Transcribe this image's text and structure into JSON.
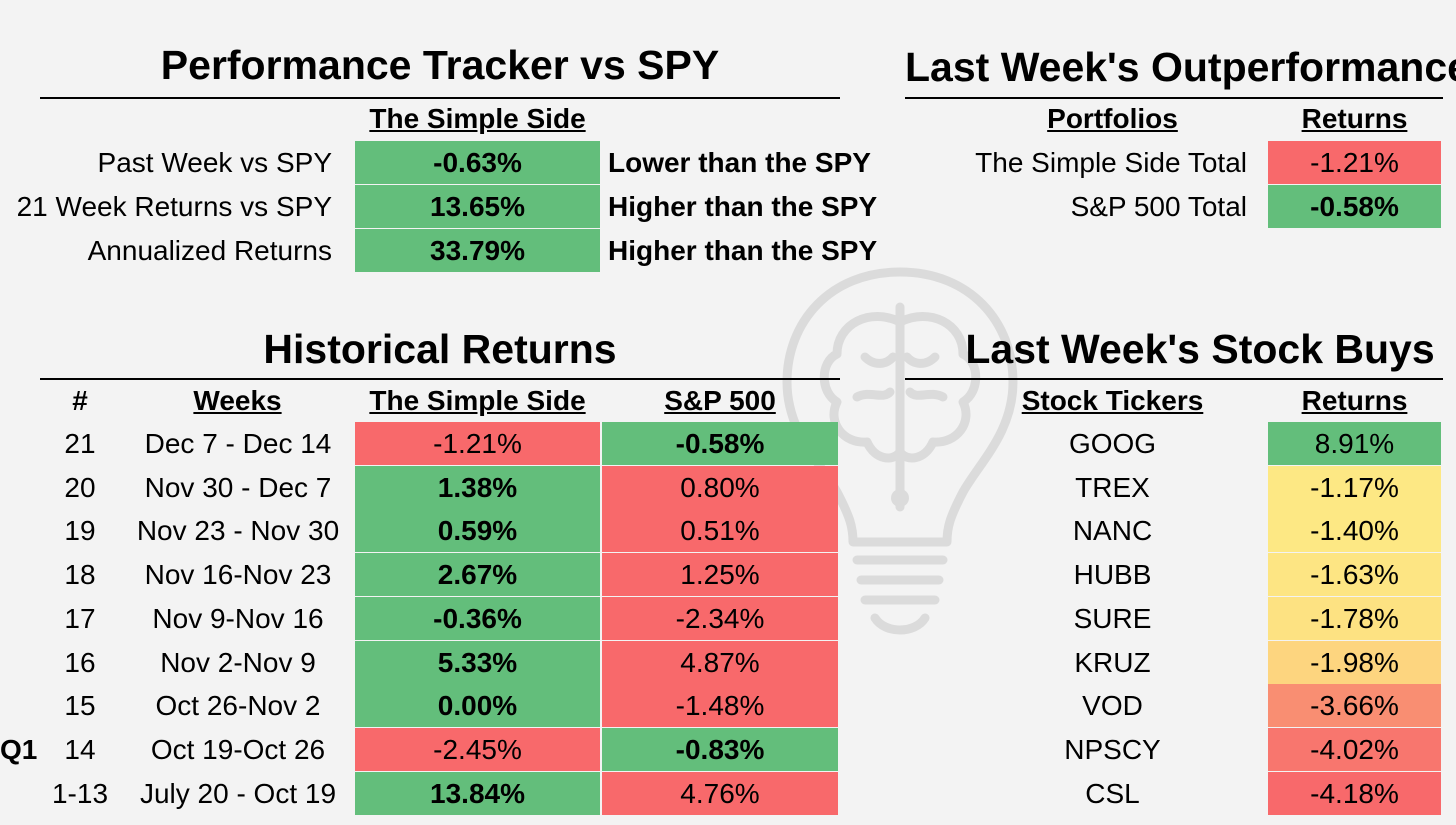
{
  "tracker": {
    "title": "Performance Tracker vs SPY",
    "column_header": "The Simple Side",
    "rows": [
      {
        "label": "Past Week vs SPY",
        "value": "-0.63%",
        "note": "Lower than the SPY"
      },
      {
        "label": "21 Week Returns vs SPY",
        "value": "13.65%",
        "note": "Higher than the SPY"
      },
      {
        "label": "Annualized Returns",
        "value": "33.79%",
        "note": "Higher than the SPY"
      }
    ]
  },
  "outperformance": {
    "title": "Last Week's Outperformance",
    "headers": {
      "portfolios": "Portfolios",
      "returns": "Returns"
    },
    "rows": [
      {
        "name": "The Simple Side Total",
        "value": "-1.21%",
        "color": "#f8696b"
      },
      {
        "name": "S&P 500 Total",
        "value": "-0.58%",
        "color": "#63be7b"
      }
    ]
  },
  "historical": {
    "title": "Historical Returns",
    "headers": {
      "num": "#",
      "weeks": "Weeks",
      "simple": "The Simple Side",
      "sp500": "S&P 500"
    },
    "quarter_label": "Q1",
    "rows": [
      {
        "num": "21",
        "weeks": "Dec 7 - Dec 14",
        "simple": "-1.21%",
        "sp": "-0.58%",
        "winner": "sp"
      },
      {
        "num": "20",
        "weeks": "Nov 30 - Dec 7",
        "simple": "1.38%",
        "sp": "0.80%",
        "winner": "simple"
      },
      {
        "num": "19",
        "weeks": "Nov 23 - Nov 30",
        "simple": "0.59%",
        "sp": "0.51%",
        "winner": "simple"
      },
      {
        "num": "18",
        "weeks": "Nov 16-Nov 23",
        "simple": "2.67%",
        "sp": "1.25%",
        "winner": "simple"
      },
      {
        "num": "17",
        "weeks": "Nov 9-Nov 16",
        "simple": "-0.36%",
        "sp": "-2.34%",
        "winner": "simple"
      },
      {
        "num": "16",
        "weeks": "Nov 2-Nov 9",
        "simple": "5.33%",
        "sp": "4.87%",
        "winner": "simple"
      },
      {
        "num": "15",
        "weeks": "Oct 26-Nov 2",
        "simple": "0.00%",
        "sp": "-1.48%",
        "winner": "simple"
      },
      {
        "num": "14",
        "weeks": "Oct 19-Oct 26",
        "simple": "-2.45%",
        "sp": "-0.83%",
        "winner": "sp"
      },
      {
        "num": "1-13",
        "weeks": "July 20 - Oct 19",
        "simple": "13.84%",
        "sp": "4.76%",
        "winner": "simple"
      }
    ]
  },
  "buys": {
    "title": "Last Week's Stock Buys",
    "headers": {
      "tickers": "Stock Tickers",
      "returns": "Returns"
    },
    "rows": [
      {
        "ticker": "GOOG",
        "value": "8.91%",
        "color": "#63be7b"
      },
      {
        "ticker": "TREX",
        "value": "-1.17%",
        "color": "#fde884"
      },
      {
        "ticker": "NANC",
        "value": "-1.40%",
        "color": "#fde884"
      },
      {
        "ticker": "HUBB",
        "value": "-1.63%",
        "color": "#fde583"
      },
      {
        "ticker": "SURE",
        "value": "-1.78%",
        "color": "#fde282"
      },
      {
        "ticker": "KRUZ",
        "value": "-1.98%",
        "color": "#fdd57f"
      },
      {
        "ticker": "VOD",
        "value": "-3.66%",
        "color": "#f98e72"
      },
      {
        "ticker": "NPSCY",
        "value": "-4.02%",
        "color": "#f8766e"
      },
      {
        "ticker": "CSL",
        "value": "-4.18%",
        "color": "#f8696b"
      }
    ]
  },
  "colors": {
    "green": "#63be7b",
    "red": "#f8696b"
  },
  "watermark_icon": "lightbulb-brain-icon"
}
